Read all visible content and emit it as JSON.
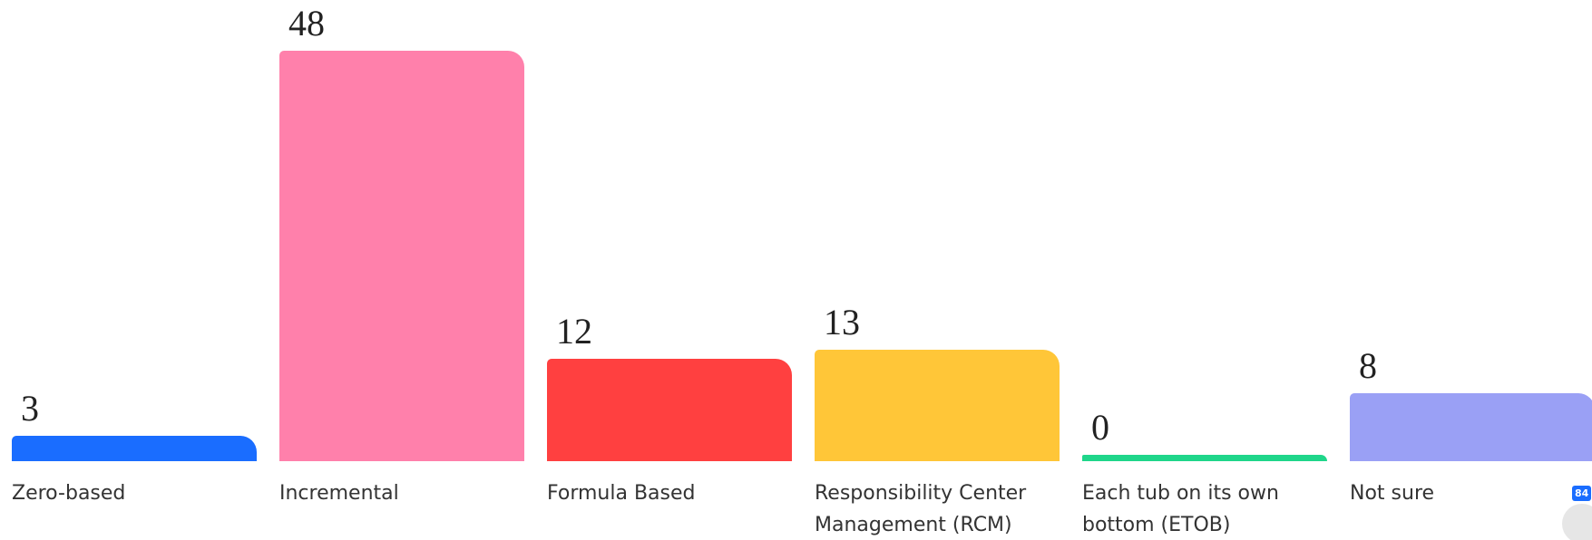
{
  "chart_data": {
    "type": "bar",
    "categories": [
      "Zero-based",
      "Incremental",
      "Formula Based",
      "Responsibility Center Management (RCM)",
      "Each tub on its own bottom (ETOB)",
      "Not sure"
    ],
    "values": [
      3,
      48,
      12,
      13,
      0,
      8
    ],
    "colors": [
      "#1a6dff",
      "#ff80ab",
      "#ff4040",
      "#ffc638",
      "#1fd68a",
      "#9aa0f5"
    ]
  },
  "badge": "84"
}
